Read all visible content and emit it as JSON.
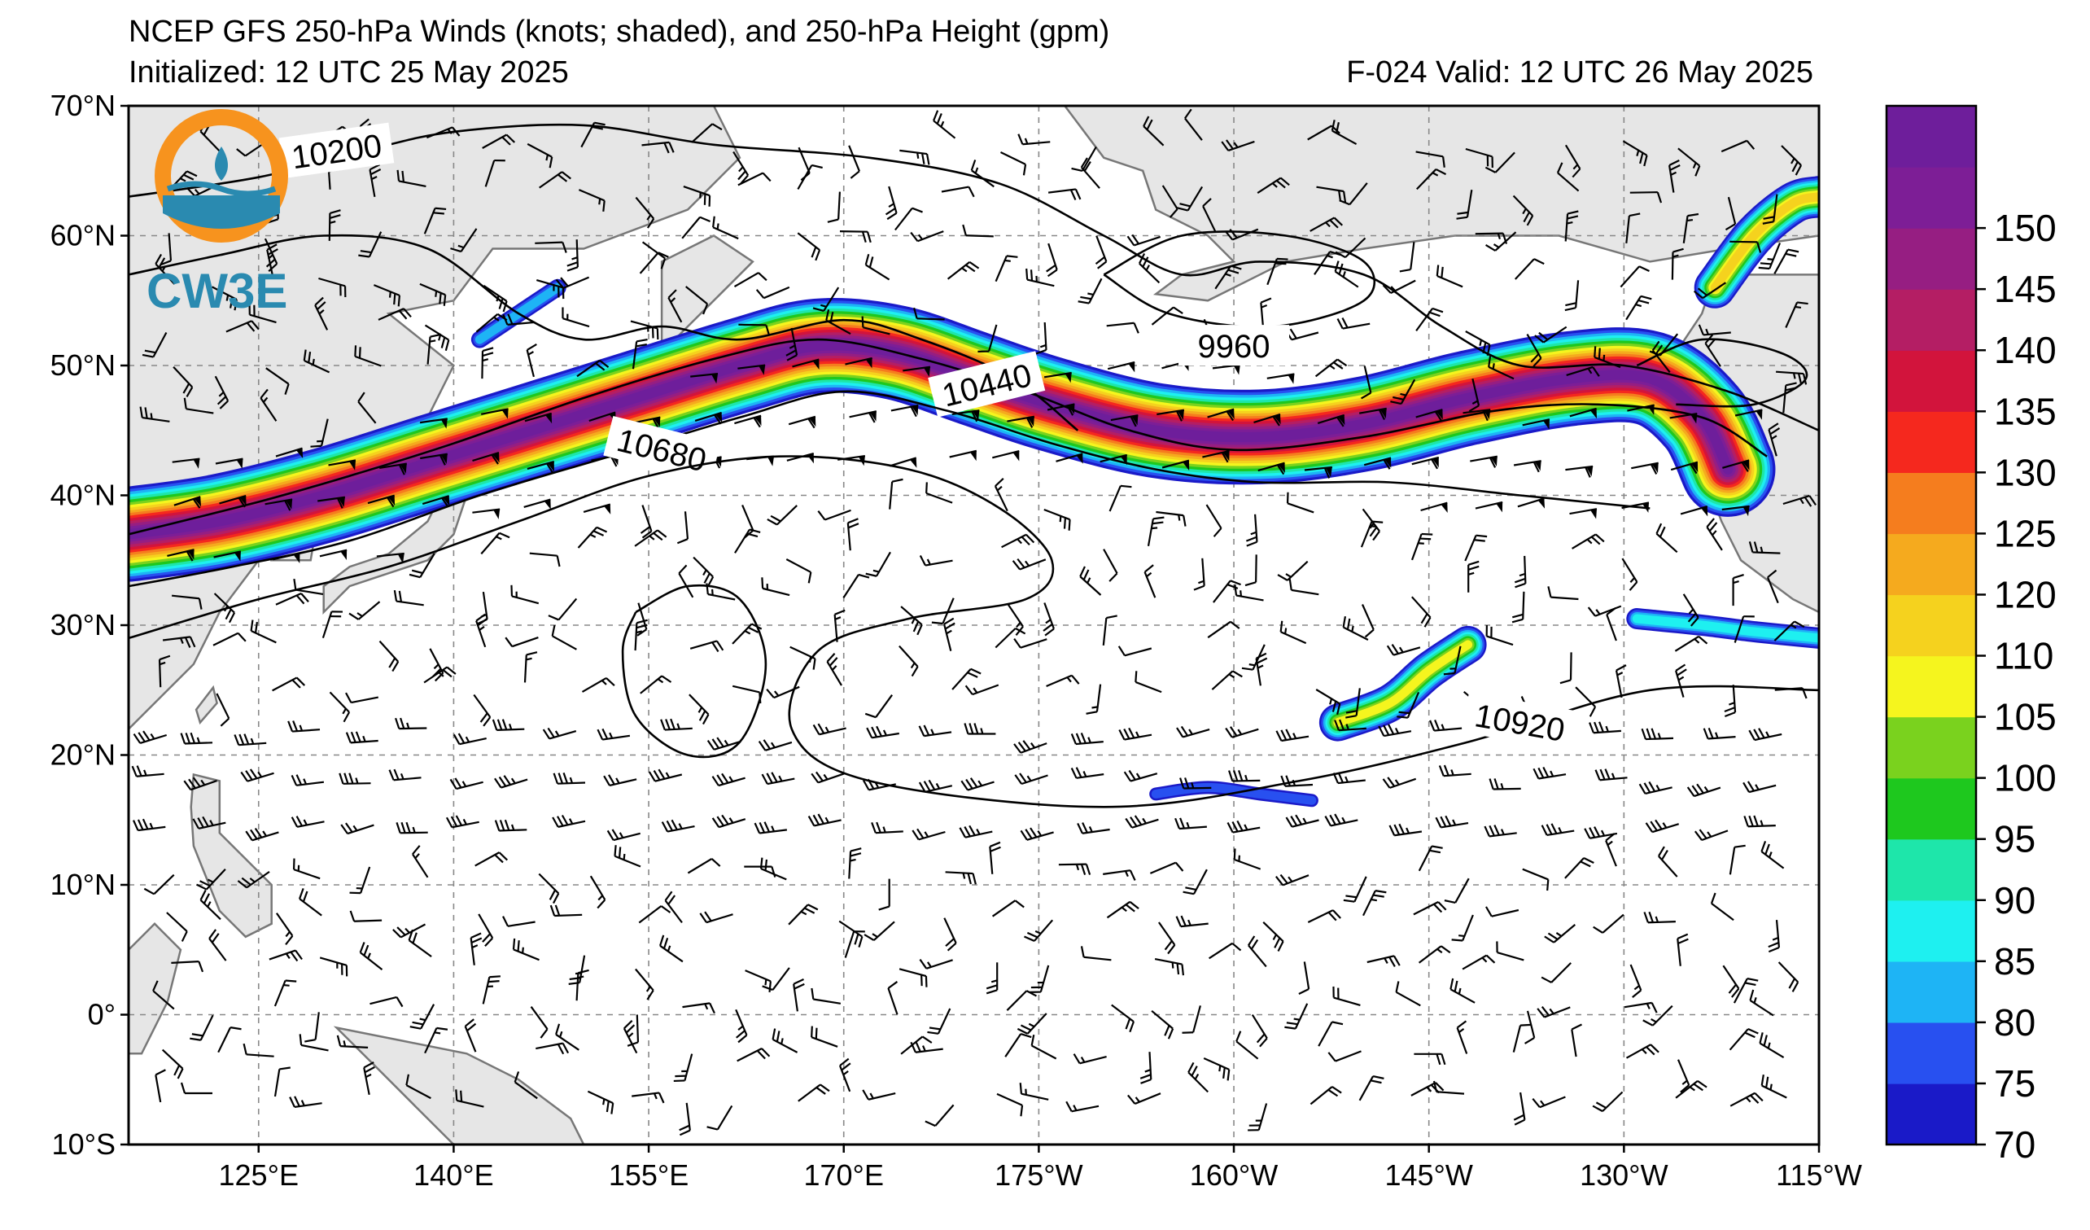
{
  "header": {
    "title": "NCEP GFS 250-hPa Winds (knots; shaded), and 250-hPa Height (gpm)",
    "initialized": "Initialized: 12 UTC 25 May 2025",
    "valid": "F-024  Valid: 12 UTC 26 May 2025"
  },
  "logo": {
    "text": "CW3E",
    "ring_color": "#f7931e",
    "wave_color": "#2a8ab0"
  },
  "map": {
    "lon_range": [
      115,
      245
    ],
    "lat_range": [
      -10,
      70
    ],
    "lon_ticks": [
      {
        "value": 125,
        "label": "125°E"
      },
      {
        "value": 140,
        "label": "140°E"
      },
      {
        "value": 155,
        "label": "155°E"
      },
      {
        "value": 170,
        "label": "170°E"
      },
      {
        "value": 185,
        "label": "175°W"
      },
      {
        "value": 200,
        "label": "160°W"
      },
      {
        "value": 215,
        "label": "145°W"
      },
      {
        "value": 230,
        "label": "130°W"
      },
      {
        "value": 245,
        "label": "115°W"
      }
    ],
    "lat_ticks": [
      {
        "value": 70,
        "label": "70°N"
      },
      {
        "value": 60,
        "label": "60°N"
      },
      {
        "value": 50,
        "label": "50°N"
      },
      {
        "value": 40,
        "label": "40°N"
      },
      {
        "value": 30,
        "label": "30°N"
      },
      {
        "value": 20,
        "label": "20°N"
      },
      {
        "value": 10,
        "label": "10°N"
      },
      {
        "value": 0,
        "label": "0°"
      },
      {
        "value": -10,
        "label": "10°S"
      }
    ],
    "land_color": "#e6e6e6",
    "coast_color": "#777777"
  },
  "height_contours": [
    {
      "label": "10200",
      "label_at": [
        131,
        66.5
      ],
      "label_angle": -8,
      "points": [
        [
          115,
          63
        ],
        [
          125,
          64.5
        ],
        [
          133,
          66.5
        ],
        [
          140,
          68
        ],
        [
          150,
          68.5
        ],
        [
          160,
          67
        ],
        [
          172,
          66
        ],
        [
          182,
          64
        ],
        [
          190,
          60
        ],
        [
          196,
          57
        ],
        [
          202,
          58
        ],
        [
          210,
          57
        ],
        [
          216,
          53
        ],
        [
          222,
          50
        ],
        [
          230,
          50
        ],
        [
          238,
          48
        ],
        [
          245,
          45
        ]
      ]
    },
    {
      "label": "",
      "label_at": null,
      "label_angle": 0,
      "points": [
        [
          115,
          57
        ],
        [
          122,
          58.5
        ],
        [
          130,
          60
        ],
        [
          138,
          59
        ],
        [
          145,
          54
        ],
        [
          150,
          52
        ],
        [
          156,
          53
        ],
        [
          162,
          52
        ],
        [
          170,
          53.5
        ],
        [
          176,
          52
        ],
        [
          183,
          49
        ],
        [
          188,
          45
        ]
      ]
    },
    {
      "label": "10440",
      "label_at": [
        181,
        48.5
      ],
      "label_angle": -14,
      "points": [
        [
          115,
          37
        ],
        [
          125,
          39.5
        ],
        [
          132,
          41.5
        ],
        [
          140,
          44
        ],
        [
          150,
          47.5
        ],
        [
          160,
          50.5
        ],
        [
          168,
          52
        ],
        [
          176,
          50.5
        ],
        [
          184,
          48
        ],
        [
          192,
          45
        ],
        [
          200,
          43.5
        ],
        [
          210,
          44.5
        ],
        [
          220,
          46.5
        ],
        [
          228,
          47
        ],
        [
          236,
          46
        ],
        [
          241,
          43
        ]
      ]
    },
    {
      "label": "10680",
      "label_at": [
        156,
        43.5
      ],
      "label_angle": 14,
      "points": [
        [
          115,
          33
        ],
        [
          123,
          34.5
        ],
        [
          132,
          36.5
        ],
        [
          142,
          40
        ],
        [
          152,
          43
        ],
        [
          162,
          46
        ],
        [
          170,
          48
        ],
        [
          178,
          46.5
        ],
        [
          186,
          44
        ],
        [
          194,
          42
        ],
        [
          202,
          41
        ],
        [
          212,
          41
        ],
        [
          222,
          40
        ],
        [
          232,
          39
        ]
      ]
    },
    {
      "label": "10920",
      "label_at": [
        222,
        22.5
      ],
      "label_angle": 10,
      "points": [
        [
          115,
          29
        ],
        [
          125,
          32
        ],
        [
          135,
          34.5
        ],
        [
          145,
          38
        ],
        [
          155,
          41.5
        ],
        [
          165,
          43
        ],
        [
          175,
          42
        ],
        [
          182,
          39
        ],
        [
          186,
          35
        ],
        [
          184,
          32
        ],
        [
          175,
          30.5
        ],
        [
          168,
          28
        ],
        [
          166,
          22
        ],
        [
          172,
          18
        ],
        [
          190,
          16
        ],
        [
          205,
          18
        ],
        [
          218,
          21
        ],
        [
          232,
          25
        ],
        [
          245,
          25
        ]
      ]
    },
    {
      "label": "9960",
      "label_at": [
        200,
        51.5
      ],
      "label_angle": 0,
      "points": [
        [
          190,
          57
        ],
        [
          196,
          60
        ],
        [
          204,
          60
        ],
        [
          210,
          58
        ],
        [
          210,
          55
        ],
        [
          203,
          53
        ],
        [
          195,
          54
        ],
        [
          190,
          57
        ]
      ]
    },
    {
      "label": "",
      "label_at": null,
      "label_angle": 0,
      "points": [
        [
          154,
          31
        ],
        [
          158,
          33
        ],
        [
          162,
          32
        ],
        [
          164,
          27
        ],
        [
          162,
          21
        ],
        [
          158,
          20
        ],
        [
          154,
          23
        ],
        [
          153,
          28
        ],
        [
          154,
          31
        ]
      ]
    },
    {
      "label": "",
      "label_at": null,
      "label_angle": 0,
      "points": [
        [
          231,
          50
        ],
        [
          236,
          52
        ],
        [
          242,
          51
        ],
        [
          244,
          49
        ],
        [
          240,
          47
        ],
        [
          234,
          47
        ]
      ]
    }
  ],
  "colorbar": {
    "min": 70,
    "max": 155,
    "tick_labels": [
      "70",
      "75",
      "80",
      "85",
      "90",
      "95",
      "100",
      "105",
      "110",
      "120",
      "125",
      "130",
      "135",
      "140",
      "145",
      "150"
    ],
    "colors": [
      "#1a1ac8",
      "#2850f0",
      "#1eb4f5",
      "#1ef0f0",
      "#1ee6aa",
      "#1ec81e",
      "#7ad21e",
      "#f5f51e",
      "#f5d21e",
      "#f5aa1e",
      "#f57d1e",
      "#f5281e",
      "#d2143c",
      "#b41e64",
      "#961e82",
      "#7d1e96",
      "#6e1e9b"
    ]
  },
  "jet_streaks": [
    {
      "name": "main-jet",
      "band": [
        [
          115,
          37
        ],
        [
          122,
          38
        ],
        [
          130,
          40
        ],
        [
          138,
          42.5
        ],
        [
          146,
          45
        ],
        [
          154,
          47.5
        ],
        [
          162,
          50
        ],
        [
          168,
          51.5
        ],
        [
          174,
          51
        ],
        [
          180,
          49
        ],
        [
          186,
          47
        ],
        [
          194,
          45
        ],
        [
          202,
          44.5
        ],
        [
          210,
          45.5
        ],
        [
          218,
          47.5
        ],
        [
          226,
          49
        ],
        [
          232,
          49
        ],
        [
          236,
          46
        ],
        [
          238,
          42
        ]
      ],
      "core_max": 150
    },
    {
      "name": "canada-jet",
      "band": [
        [
          237,
          56
        ],
        [
          240,
          60
        ],
        [
          243,
          62.5
        ],
        [
          245,
          63
        ]
      ],
      "core_max": 110
    },
    {
      "name": "subtropical-jet",
      "band": [
        [
          231,
          30.5
        ],
        [
          236,
          30
        ],
        [
          240,
          29.5
        ],
        [
          245,
          29
        ]
      ],
      "core_max": 85
    },
    {
      "name": "hawaii-jet",
      "band": [
        [
          208,
          22.5
        ],
        [
          212,
          24
        ],
        [
          215,
          26.5
        ],
        [
          218,
          28.5
        ]
      ],
      "core_max": 105
    },
    {
      "name": "tropical-blob",
      "band": [
        [
          194,
          17
        ],
        [
          198,
          17.5
        ],
        [
          202,
          17
        ],
        [
          206,
          16.5
        ]
      ],
      "core_max": 75
    },
    {
      "name": "okhotsk-blob",
      "band": [
        [
          142,
          52
        ],
        [
          145,
          54
        ],
        [
          148,
          56
        ]
      ],
      "core_max": 80
    }
  ]
}
